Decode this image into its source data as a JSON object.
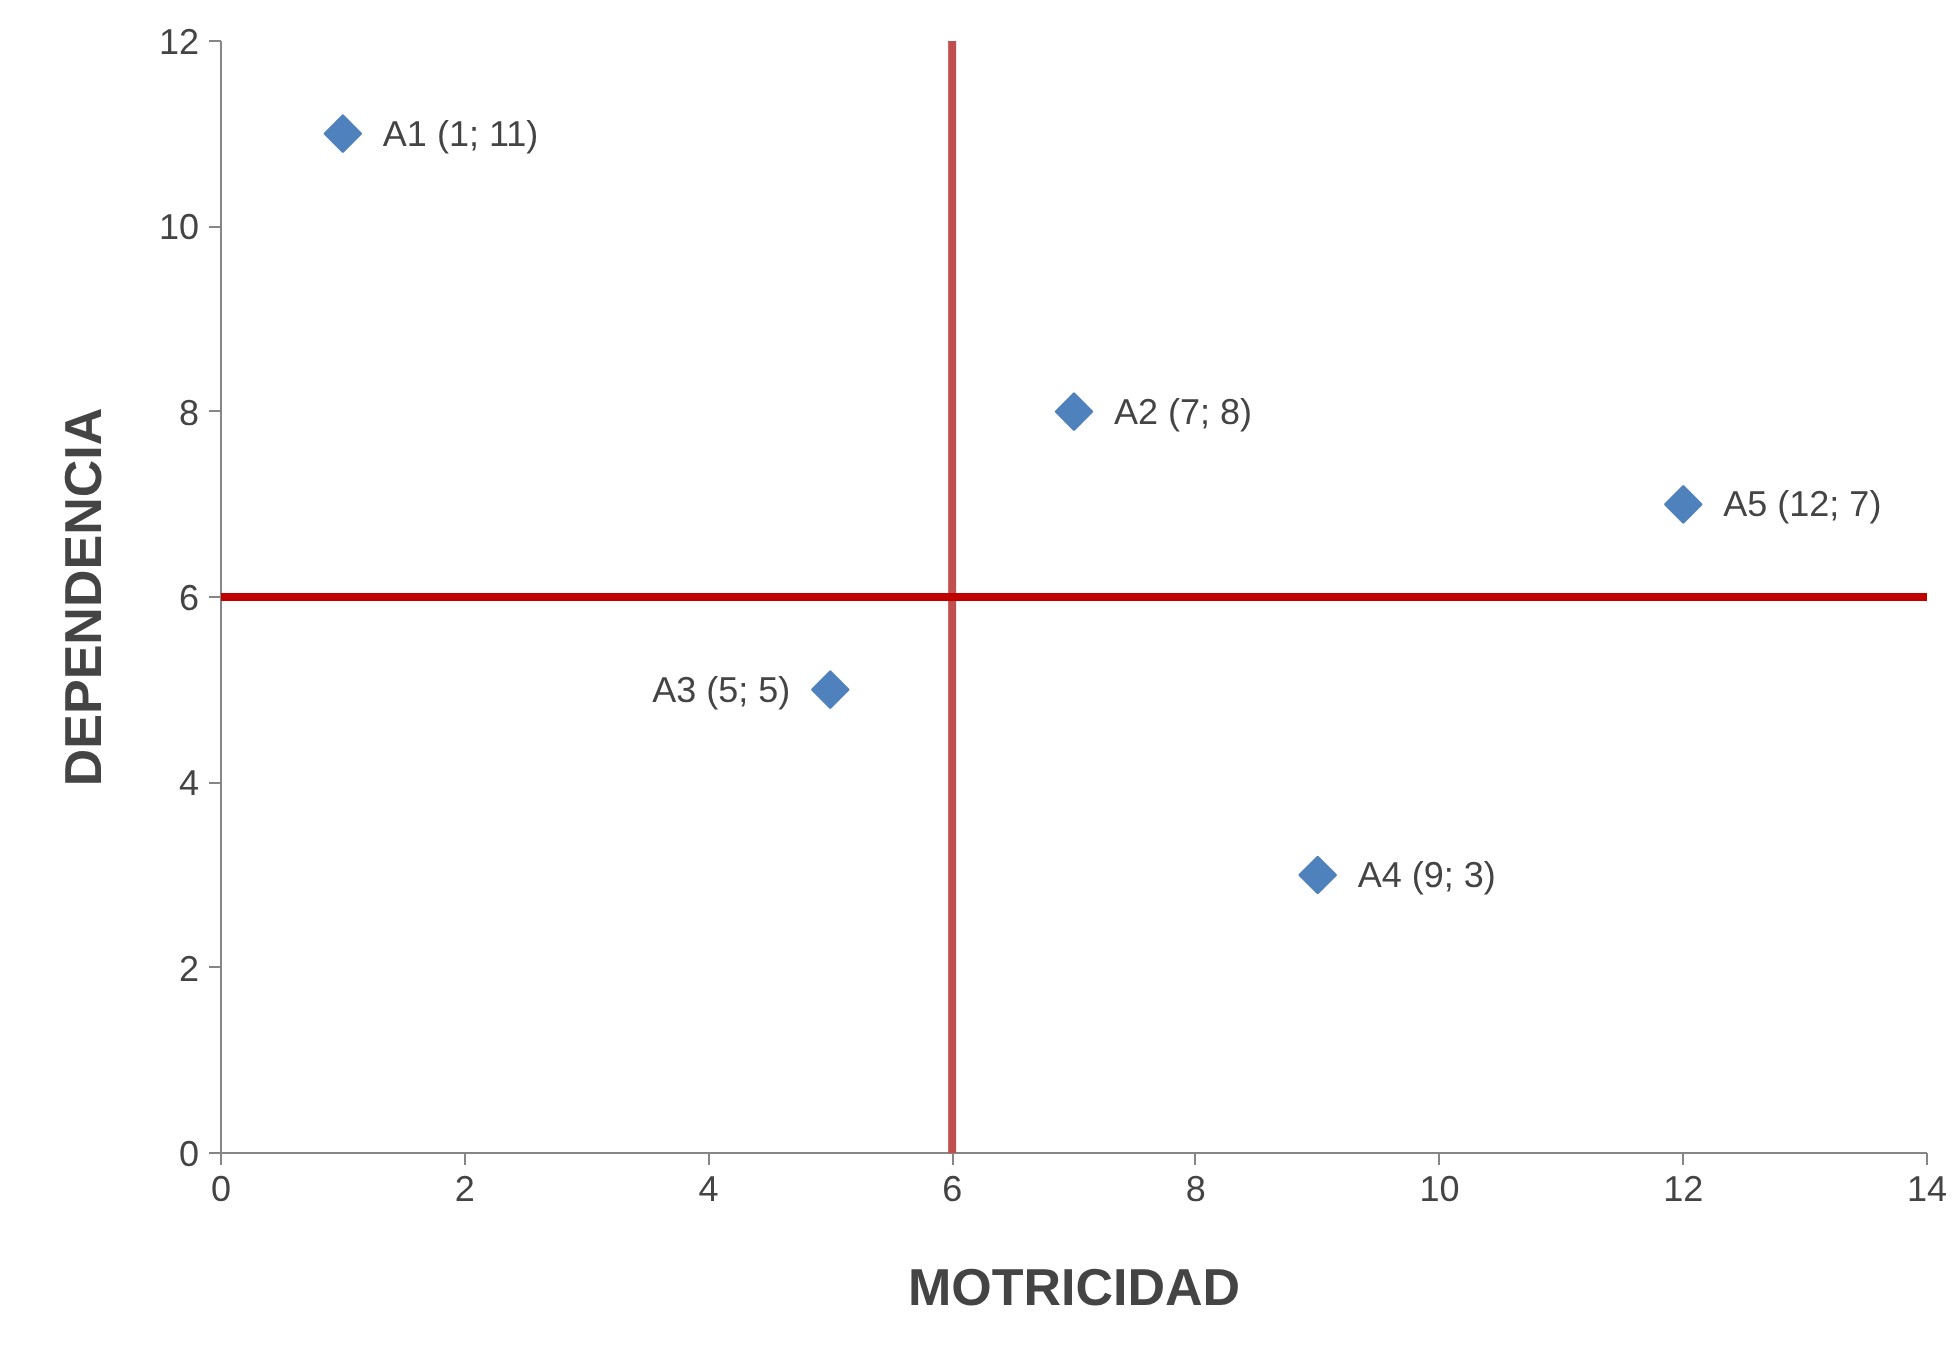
{
  "chart_data": {
    "type": "scatter",
    "xlabel": "MOTRICIDAD",
    "ylabel": "DEPENDENCIA",
    "x": [
      1,
      7,
      5,
      9,
      12
    ],
    "series": [
      {
        "color": "#4f81bd",
        "values": [
          11,
          8,
          5,
          3,
          7
        ]
      }
    ],
    "marker": "diamond",
    "grid": false,
    "xlim": [
      0,
      14
    ],
    "xticks": [
      0,
      2,
      4,
      6,
      8,
      10,
      12,
      14
    ],
    "ylim": [
      0,
      12
    ],
    "yticks": [
      0,
      2,
      4,
      6,
      8,
      10,
      12
    ],
    "ref_lines": [
      {
        "axis": "x",
        "value": 6,
        "color": "#c0504d"
      },
      {
        "axis": "y",
        "value": 6,
        "color": "#c00000"
      }
    ],
    "annotations": [
      {
        "text": "A1 (1; 11)",
        "x": 1,
        "y": 11
      },
      {
        "text": "A2 (7; 8)",
        "x": 7,
        "y": 8
      },
      {
        "text": "A3 (5; 5)",
        "x": 5,
        "y": 5
      },
      {
        "text": "A4 (9; 3)",
        "x": 9,
        "y": 3
      },
      {
        "text": "A5 (12; 7)",
        "x": 12,
        "y": 7
      }
    ]
  }
}
